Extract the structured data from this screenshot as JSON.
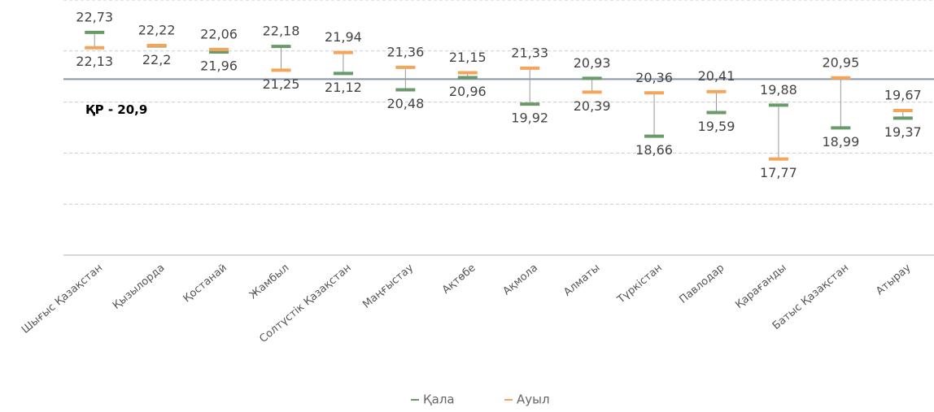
{
  "chart_data": {
    "type": "dumbbell",
    "categories": [
      "Шығыс Қазақстан",
      "Қызылорда",
      "Қостанай",
      "Жамбыл",
      "Солтүстік Қазақстан",
      "Маңғыстау",
      "Ақтөбе",
      "Ақмола",
      "Алматы",
      "Түркістан",
      "Павлодар",
      "Қарағанды",
      "Батыс Қазақстан",
      "Атырау"
    ],
    "series": [
      {
        "name": "Қала",
        "color": "#6a9a6a",
        "values": [
          22.73,
          22.2,
          21.96,
          22.18,
          21.12,
          20.48,
          20.96,
          19.92,
          20.93,
          18.66,
          19.59,
          19.88,
          18.99,
          19.37
        ],
        "value_labels": [
          "22,73",
          "22,2",
          "21,96",
          "22,18",
          "21,12",
          "20,48",
          "20,96",
          "19,92",
          "20,93",
          "18,66",
          "19,59",
          "19,88",
          "18,99",
          "19,37"
        ]
      },
      {
        "name": "Ауыл",
        "color": "#f5a55a",
        "values": [
          22.13,
          22.22,
          22.06,
          21.25,
          21.94,
          21.36,
          21.15,
          21.33,
          20.39,
          20.36,
          20.41,
          17.77,
          20.95,
          19.67
        ],
        "value_labels": [
          "22,13",
          "22,22",
          "22,06",
          "21,25",
          "21,94",
          "21,36",
          "21,15",
          "21,33",
          "20,39",
          "20,36",
          "20,41",
          "17,77",
          "20,95",
          "19,67"
        ]
      }
    ],
    "reference_line": {
      "value": 20.9,
      "label": "ҚР - 20,9"
    },
    "ylim": [
      14,
      24
    ],
    "yticks": [
      14,
      16,
      18,
      20,
      22,
      24
    ],
    "grid": true
  }
}
